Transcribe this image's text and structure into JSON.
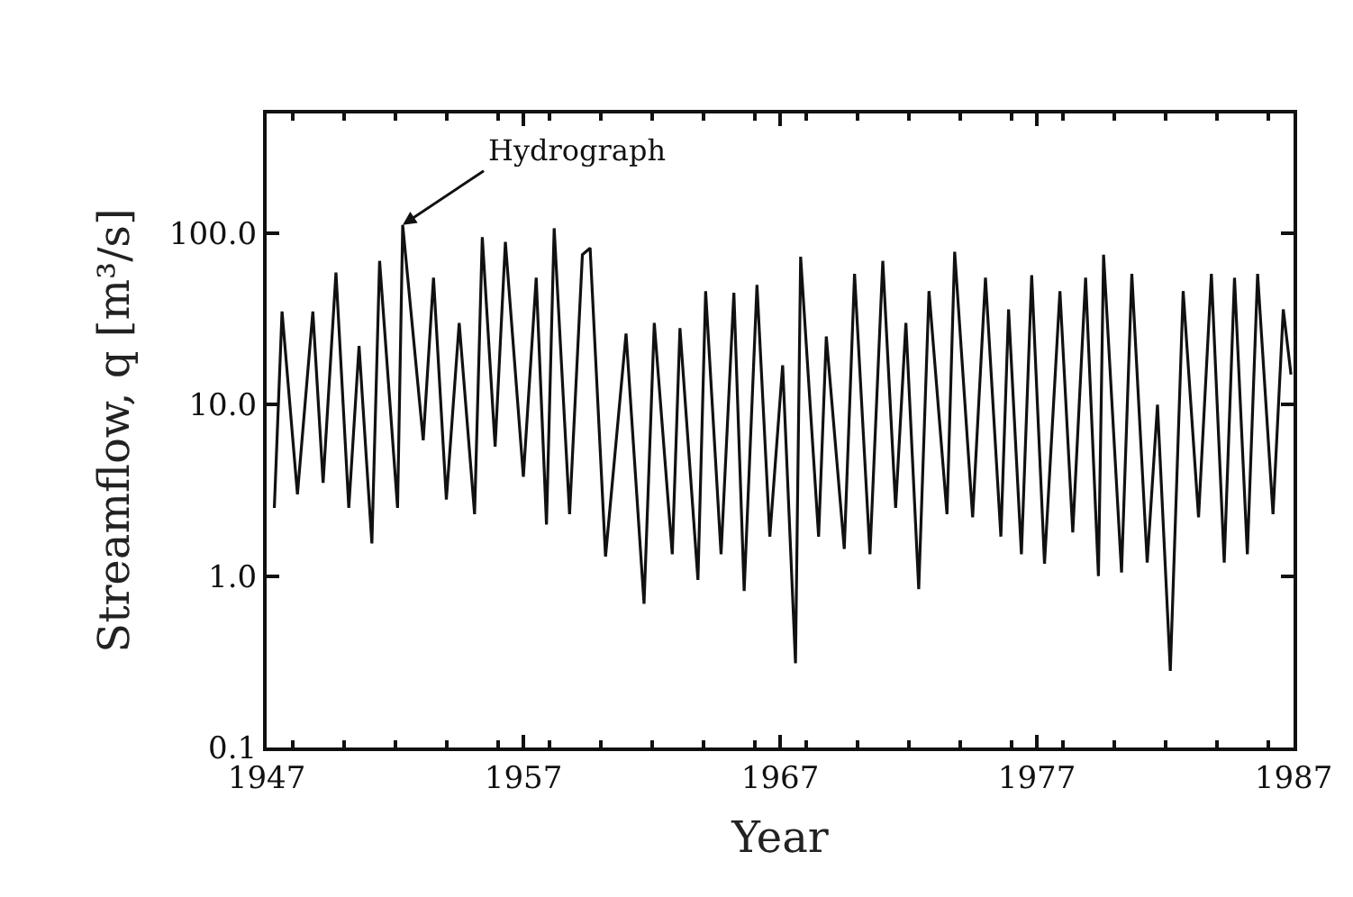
{
  "chart_data": {
    "type": "line",
    "xlabel": "Year",
    "ylabel": "Streamflow, q [m³/s]",
    "log": "y",
    "marker": "none",
    "line_style": "solid",
    "xlim": [
      1947,
      1987
    ],
    "xticks": [
      1947,
      1957,
      1967,
      1977,
      1987
    ],
    "ylim": [
      0.1,
      500
    ],
    "yticks": [
      0.1,
      {
        "value": 1,
        "label": "1.0"
      },
      {
        "value": 10,
        "label": "10.0"
      },
      {
        "value": 100,
        "label": "100.0"
      }
    ],
    "annotations": [
      {
        "text": "Hydrograph",
        "x": 1952.3,
        "y": 112
      }
    ],
    "series": [
      {
        "color": "#111111",
        "x": [
          1947.3,
          1947.6,
          1948.2,
          1948.8,
          1949.2,
          1949.7,
          1950.2,
          1950.6,
          1951.1,
          1951.4,
          1952.1,
          1952.3,
          1953.1,
          1953.5,
          1954.0,
          1954.5,
          1955.1,
          1955.4,
          1955.9,
          1956.3,
          1957.0,
          1957.5,
          1957.9,
          1958.2,
          1958.8,
          1959.3,
          1959.6,
          1960.2,
          1961.0,
          1961.7,
          1962.1,
          1962.8,
          1963.1,
          1963.8,
          1964.1,
          1964.7,
          1965.2,
          1965.6,
          1966.1,
          1966.6,
          1967.1,
          1967.6,
          1967.8,
          1968.5,
          1968.8,
          1969.5,
          1969.9,
          1970.5,
          1971.0,
          1971.5,
          1971.9,
          1972.4,
          1972.8,
          1973.5,
          1973.8,
          1974.5,
          1975.0,
          1975.6,
          1975.9,
          1976.4,
          1976.8,
          1977.3,
          1977.9,
          1978.4,
          1978.9,
          1979.4,
          1979.6,
          1980.3,
          1980.7,
          1981.3,
          1981.7,
          1982.2,
          1982.7,
          1983.3,
          1983.8,
          1984.3,
          1984.7,
          1985.2,
          1985.6,
          1986.2,
          1986.6,
          1986.9
        ],
        "values": [
          2.5,
          35,
          3,
          35,
          3.5,
          59,
          2.5,
          22,
          1.55,
          69,
          2.5,
          112,
          6.2,
          55,
          2.8,
          30,
          2.3,
          95,
          5.7,
          89,
          3.8,
          55,
          2.0,
          107,
          2.3,
          75,
          82,
          1.3,
          26,
          0.69,
          30,
          1.34,
          28,
          0.95,
          46,
          1.34,
          45,
          0.82,
          50,
          1.7,
          17,
          0.31,
          73,
          1.7,
          25,
          1.44,
          58,
          1.34,
          69,
          2.5,
          30,
          0.84,
          46,
          2.3,
          78,
          2.2,
          55,
          1.7,
          36,
          1.34,
          57,
          1.18,
          46,
          1.8,
          55,
          1.0,
          75,
          1.05,
          58,
          1.2,
          10,
          0.28,
          46,
          2.2,
          58,
          1.2,
          55,
          1.34,
          58,
          2.3,
          36,
          15
        ]
      }
    ]
  }
}
